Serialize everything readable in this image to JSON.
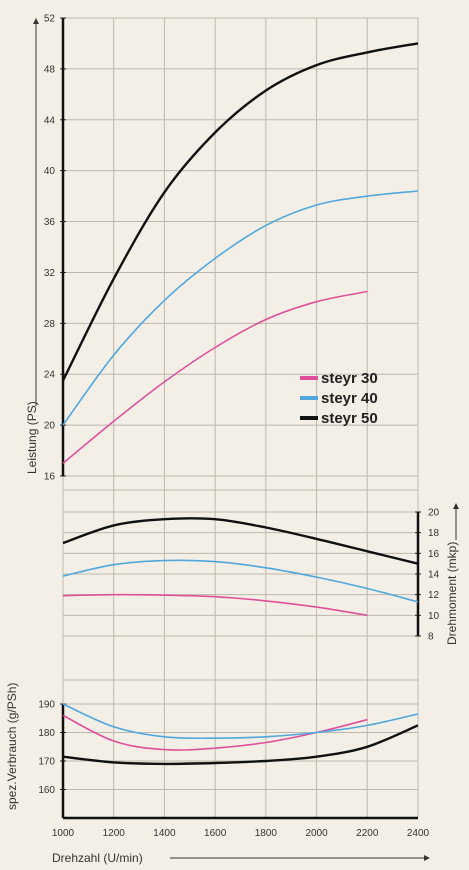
{
  "chart_data": [
    {
      "type": "line",
      "panel": "power",
      "ylabel": "Leistung (PS)",
      "ylim": [
        16,
        52
      ],
      "yticks": [
        16,
        20,
        24,
        28,
        32,
        36,
        40,
        44,
        48,
        52
      ],
      "series": [
        {
          "name": "steyr 30",
          "color": "#e0509a",
          "x": [
            1000,
            1200,
            1400,
            1600,
            1800,
            2000,
            2200
          ],
          "y": [
            17.0,
            20.3,
            23.4,
            26.1,
            28.3,
            29.7,
            30.5
          ]
        },
        {
          "name": "steyr 40",
          "color": "#4fa7dc",
          "x": [
            1000,
            1200,
            1400,
            1600,
            1800,
            2000,
            2200,
            2400
          ],
          "y": [
            20.0,
            25.5,
            29.8,
            33.1,
            35.7,
            37.3,
            38.0,
            38.4
          ]
        },
        {
          "name": "steyr 50",
          "color": "#111111",
          "x": [
            1000,
            1200,
            1400,
            1600,
            1800,
            2000,
            2200,
            2400
          ],
          "y": [
            23.5,
            31.5,
            38.3,
            43.0,
            46.3,
            48.3,
            49.3,
            50.0
          ]
        }
      ]
    },
    {
      "type": "line",
      "panel": "torque",
      "ylabel": "Drehmoment (mkp)",
      "ylim": [
        8,
        20
      ],
      "yticks": [
        8,
        10,
        12,
        14,
        16,
        18,
        20
      ],
      "series": [
        {
          "name": "steyr 30",
          "color": "#e0509a",
          "x": [
            1000,
            1200,
            1400,
            1600,
            1800,
            2000,
            2200
          ],
          "y": [
            11.9,
            12.0,
            11.95,
            11.8,
            11.4,
            10.8,
            10.0
          ]
        },
        {
          "name": "steyr 40",
          "color": "#4fa7dc",
          "x": [
            1000,
            1200,
            1400,
            1600,
            1800,
            2000,
            2200,
            2400
          ],
          "y": [
            13.8,
            14.9,
            15.3,
            15.2,
            14.6,
            13.7,
            12.6,
            11.3
          ]
        },
        {
          "name": "steyr 50",
          "color": "#111111",
          "x": [
            1000,
            1200,
            1400,
            1600,
            1800,
            2000,
            2200,
            2400
          ],
          "y": [
            17.0,
            18.7,
            19.3,
            19.3,
            18.5,
            17.4,
            16.2,
            15.0
          ]
        }
      ]
    },
    {
      "type": "line",
      "panel": "consumption",
      "ylabel": "spez.Verbrauch (g/PSh)",
      "ylim": [
        150,
        190
      ],
      "yticks": [
        160,
        170,
        180,
        190
      ],
      "series": [
        {
          "name": "steyr 30",
          "color": "#e0509a",
          "x": [
            1000,
            1200,
            1400,
            1600,
            1800,
            2000,
            2200
          ],
          "y": [
            186,
            177,
            174,
            174.5,
            176.5,
            180,
            184.5
          ]
        },
        {
          "name": "steyr 40",
          "color": "#4fa7dc",
          "x": [
            1000,
            1200,
            1400,
            1600,
            1800,
            2000,
            2200,
            2400
          ],
          "y": [
            190,
            182,
            178.5,
            178,
            178.5,
            180,
            182.5,
            186.5
          ]
        },
        {
          "name": "steyr 50",
          "color": "#111111",
          "x": [
            1000,
            1200,
            1400,
            1600,
            1800,
            2000,
            2200,
            2400
          ],
          "y": [
            171.5,
            169.5,
            169,
            169.3,
            170,
            171.5,
            175,
            182.5
          ]
        }
      ]
    }
  ],
  "x_axis": {
    "label": "Drehzahl (U/min)",
    "range": [
      1000,
      2400
    ],
    "ticks": [
      1000,
      1200,
      1400,
      1600,
      1800,
      2000,
      2200,
      2400
    ]
  },
  "legend": {
    "placement": "inside power panel, right",
    "items": [
      {
        "name": "steyr 30",
        "color": "#e0509a"
      },
      {
        "name": "steyr 40",
        "color": "#4fa7dc"
      },
      {
        "name": "steyr 50",
        "color": "#111111"
      }
    ]
  }
}
